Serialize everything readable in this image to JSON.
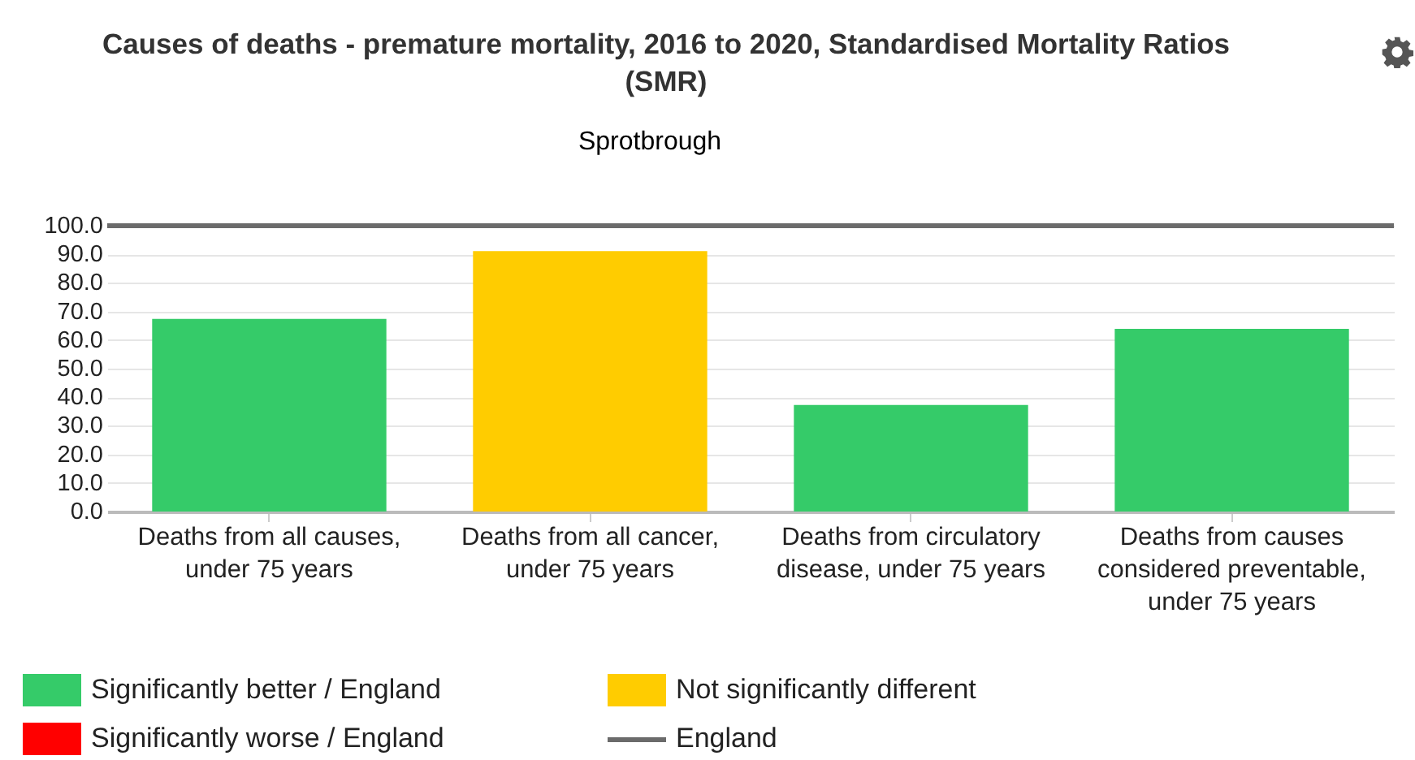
{
  "chart_data": {
    "type": "bar",
    "title": "Causes of deaths - premature mortality, 2016 to 2020, Standardised Mortality Ratios (SMR)",
    "subtitle": "Sprotbrough",
    "categories": [
      "Deaths from all causes, under 75 years",
      "Deaths from all cancer, under 75 years",
      "Deaths from circulatory disease, under 75 years",
      "Deaths from causes considered preventable, under 75 years"
    ],
    "series": [
      {
        "name": "Significantly better / England",
        "color": "#35cb69",
        "values": [
          67.4,
          null,
          37.3,
          63.9
        ]
      },
      {
        "name": "Not significantly different",
        "color": "#ffcc00",
        "values": [
          null,
          91.1,
          null,
          null
        ]
      },
      {
        "name": "Significantly worse / England",
        "color": "#ff0000",
        "values": [
          null,
          null,
          null,
          null
        ]
      }
    ],
    "ref_lines": [
      {
        "axis": "y",
        "value": 100,
        "label": "England",
        "color": "#6b6b6b"
      }
    ],
    "ylim": [
      0,
      100
    ],
    "yticks": [
      {
        "value": 0,
        "label": "0.0"
      },
      {
        "value": 10,
        "label": "10.0"
      },
      {
        "value": 20,
        "label": "20.0"
      },
      {
        "value": 30,
        "label": "30.0"
      },
      {
        "value": 40,
        "label": "40.0"
      },
      {
        "value": 50,
        "label": "50.0"
      },
      {
        "value": 60,
        "label": "60.0"
      },
      {
        "value": 70,
        "label": "70.0"
      },
      {
        "value": 80,
        "label": "80.0"
      },
      {
        "value": 90,
        "label": "90.0"
      },
      {
        "value": 100,
        "label": "100.0"
      }
    ],
    "grid": "y",
    "legend": "bottom left"
  }
}
